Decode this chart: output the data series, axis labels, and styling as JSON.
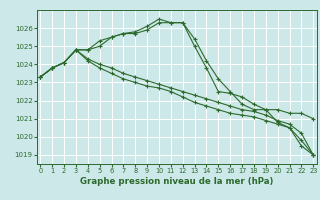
{
  "background_color": "#cce8e8",
  "grid_color": "#ffffff",
  "line_color": "#2d6a2d",
  "title": "Graphe pression niveau de la mer (hPa)",
  "ylim": [
    1018.5,
    1027.0
  ],
  "xlim": [
    -0.3,
    23.3
  ],
  "yticks": [
    1019,
    1020,
    1021,
    1022,
    1023,
    1024,
    1025,
    1026
  ],
  "xticks": [
    0,
    1,
    2,
    3,
    4,
    5,
    6,
    7,
    8,
    9,
    10,
    11,
    12,
    13,
    14,
    15,
    16,
    17,
    18,
    19,
    20,
    21,
    22,
    23
  ],
  "series": [
    [
      1023.3,
      1023.8,
      1024.1,
      1024.8,
      1024.8,
      1025.0,
      1025.5,
      1025.7,
      1025.8,
      1026.1,
      1026.5,
      1026.3,
      1026.3,
      1025.4,
      1024.2,
      1023.2,
      1022.5,
      1021.8,
      1021.5,
      1021.5,
      1020.8,
      1020.5,
      1019.5,
      1019.0
    ],
    [
      1023.3,
      1023.8,
      1024.1,
      1024.8,
      1024.8,
      1025.3,
      1025.5,
      1025.7,
      1025.7,
      1025.9,
      1026.3,
      1026.3,
      1026.3,
      1025.0,
      1023.8,
      1022.5,
      1022.4,
      1022.2,
      1021.8,
      1021.5,
      1021.5,
      1021.3,
      1021.3,
      1021.0
    ],
    [
      1023.3,
      1023.8,
      1024.1,
      1024.8,
      1024.2,
      1023.8,
      1023.5,
      1023.2,
      1023.0,
      1022.8,
      1022.7,
      1022.5,
      1022.2,
      1021.9,
      1021.7,
      1021.5,
      1021.3,
      1021.2,
      1021.1,
      1020.9,
      1020.7,
      1020.5,
      1019.8,
      1019.0
    ],
    [
      1023.3,
      1023.8,
      1024.1,
      1024.8,
      1024.3,
      1024.0,
      1023.8,
      1023.5,
      1023.3,
      1023.1,
      1022.9,
      1022.7,
      1022.5,
      1022.3,
      1022.1,
      1021.9,
      1021.7,
      1021.5,
      1021.4,
      1021.2,
      1020.9,
      1020.7,
      1020.2,
      1019.0
    ]
  ]
}
